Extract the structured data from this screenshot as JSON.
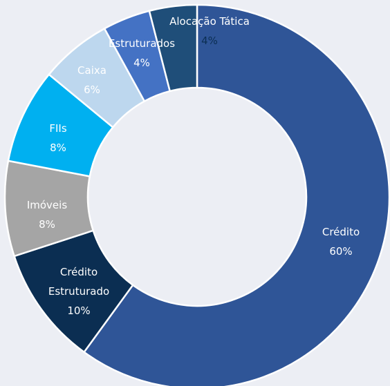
{
  "chart_data": {
    "type": "donut",
    "categories": [
      "Crédito",
      "Crédito Estruturado",
      "Imóveis",
      "FIIs",
      "Caixa",
      "Estruturados",
      "Alocação Tática"
    ],
    "values": [
      60,
      10,
      8,
      8,
      6,
      4,
      4
    ],
    "value_labels": [
      "60%",
      "10%",
      "8%",
      "8%",
      "6%",
      "4%",
      "4%"
    ],
    "colors": [
      "#2f5597",
      "#0b2e52",
      "#a5a5a5",
      "#00b0f0",
      "#bdd7ee",
      "#4472c4",
      "#1f4e79"
    ]
  }
}
